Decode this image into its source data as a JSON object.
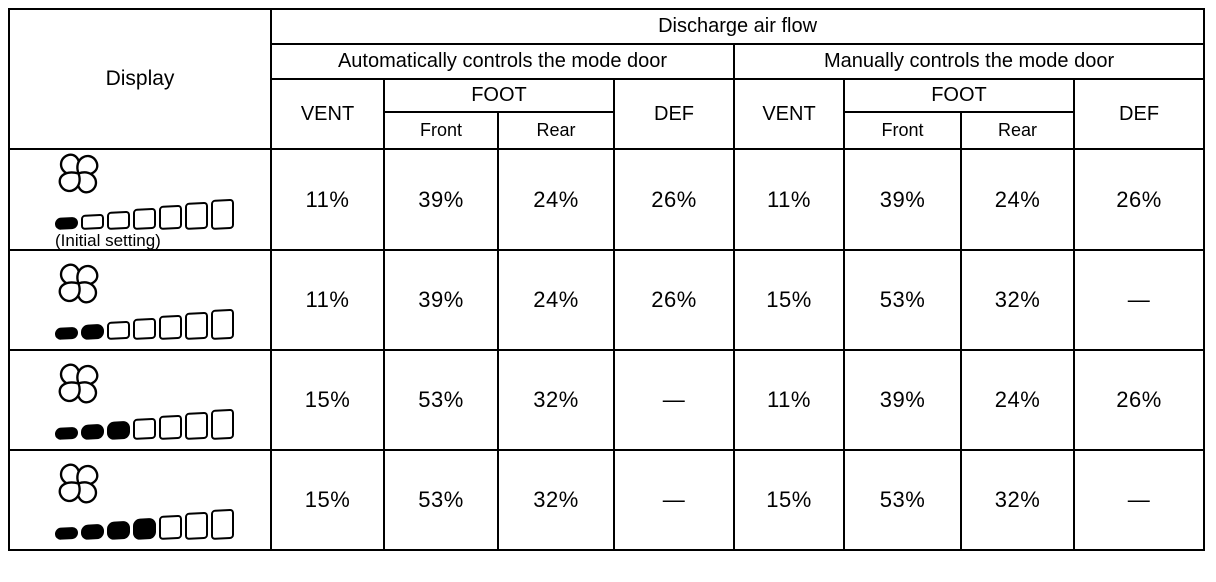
{
  "page": {
    "background": "#ffffff",
    "ink": "#000000"
  },
  "table": {
    "display_header": "Display",
    "top_header": "Discharge air flow",
    "group_headers": [
      "Automatically controls the mode door",
      "Manually controls the mode door"
    ],
    "col_headers": {
      "vent": "VENT",
      "foot": "FOOT",
      "front": "Front",
      "rear": "Rear",
      "def": "DEF"
    },
    "rows": [
      {
        "display": {
          "icon": "fan-icon",
          "bars_total": 7,
          "bars_filled": 1,
          "caption": "(Initial setting)"
        },
        "values": [
          "11%",
          "39%",
          "24%",
          "26%",
          "11%",
          "39%",
          "24%",
          "26%"
        ]
      },
      {
        "display": {
          "icon": "fan-icon",
          "bars_total": 7,
          "bars_filled": 2,
          "caption": ""
        },
        "values": [
          "11%",
          "39%",
          "24%",
          "26%",
          "15%",
          "53%",
          "32%",
          "—"
        ]
      },
      {
        "display": {
          "icon": "fan-icon",
          "bars_total": 7,
          "bars_filled": 3,
          "caption": ""
        },
        "values": [
          "15%",
          "53%",
          "32%",
          "—",
          "11%",
          "39%",
          "24%",
          "26%"
        ]
      },
      {
        "display": {
          "icon": "fan-icon",
          "bars_total": 7,
          "bars_filled": 4,
          "caption": ""
        },
        "values": [
          "15%",
          "53%",
          "32%",
          "—",
          "15%",
          "53%",
          "32%",
          "—"
        ]
      }
    ]
  }
}
